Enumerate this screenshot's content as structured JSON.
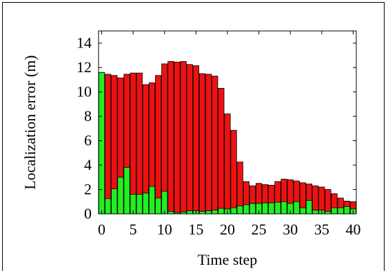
{
  "chart_data": {
    "type": "bar",
    "xlabel": "Time step",
    "ylabel": "Localization error (m)",
    "xlim": [
      -0.5,
      40.5
    ],
    "ylim": [
      0,
      15
    ],
    "x_ticks": [
      0,
      5,
      10,
      15,
      20,
      25,
      30,
      35,
      40
    ],
    "y_ticks": [
      0,
      2,
      4,
      6,
      8,
      10,
      12,
      14
    ],
    "x": [
      0,
      1,
      2,
      3,
      4,
      5,
      6,
      7,
      8,
      9,
      10,
      11,
      12,
      13,
      14,
      15,
      16,
      17,
      18,
      19,
      20,
      21,
      22,
      23,
      24,
      25,
      26,
      27,
      28,
      29,
      30,
      31,
      32,
      33,
      34,
      35,
      36,
      37,
      38,
      39,
      40
    ],
    "series": [
      {
        "color": "#ee1111",
        "values": [
          11.6,
          11.45,
          11.35,
          11.15,
          11.45,
          11.55,
          11.55,
          10.6,
          10.75,
          11.35,
          12.3,
          12.5,
          12.45,
          12.5,
          12.25,
          12.15,
          11.5,
          11.45,
          11.3,
          10.3,
          8.2,
          6.85,
          4.25,
          2.65,
          2.3,
          2.5,
          2.4,
          2.35,
          2.65,
          2.85,
          2.8,
          2.7,
          2.55,
          2.45,
          2.3,
          2.2,
          2.0,
          1.65,
          1.3,
          1.05,
          1.0
        ]
      },
      {
        "color": "#22ee22",
        "values": [
          11.6,
          1.25,
          2.05,
          3.0,
          3.8,
          1.6,
          1.6,
          1.7,
          2.25,
          1.3,
          1.85,
          0.2,
          0.1,
          0.15,
          0.25,
          0.25,
          0.2,
          0.25,
          0.3,
          0.45,
          0.4,
          0.5,
          0.65,
          0.75,
          0.85,
          0.85,
          0.9,
          0.9,
          0.95,
          1.0,
          0.85,
          1.0,
          0.5,
          1.1,
          0.3,
          0.3,
          0.2,
          0.5,
          0.5,
          0.6,
          0.4
        ]
      }
    ],
    "grid": false
  }
}
